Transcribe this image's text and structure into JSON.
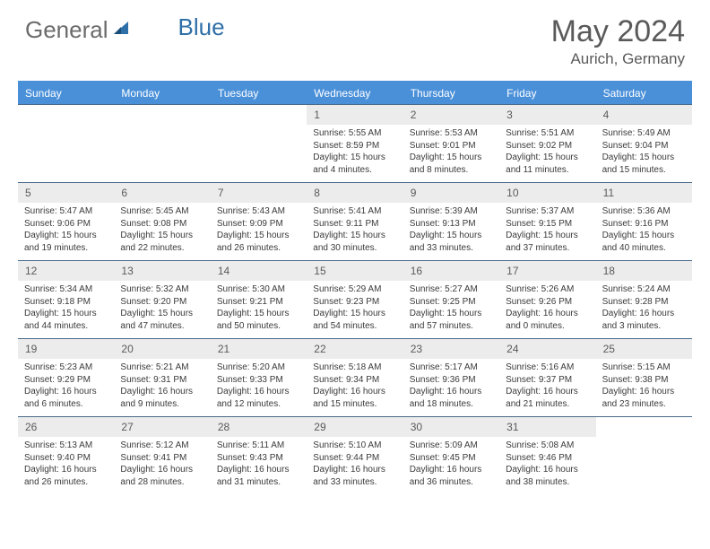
{
  "logo": {
    "part1": "General",
    "part2": "Blue"
  },
  "title": "May 2024",
  "location": "Aurich, Germany",
  "colors": {
    "header_bg": "#4a90d9",
    "header_text": "#ffffff",
    "daynum_bg": "#ececec",
    "border": "#4a6a8a",
    "text": "#3a3a3a",
    "logo_gray": "#6b6b6b",
    "logo_blue": "#2f6fa8"
  },
  "day_names": [
    "Sunday",
    "Monday",
    "Tuesday",
    "Wednesday",
    "Thursday",
    "Friday",
    "Saturday"
  ],
  "weeks": [
    [
      {
        "empty": true
      },
      {
        "empty": true
      },
      {
        "empty": true
      },
      {
        "day": "1",
        "sunrise": "Sunrise: 5:55 AM",
        "sunset": "Sunset: 8:59 PM",
        "daylight": "Daylight: 15 hours and 4 minutes."
      },
      {
        "day": "2",
        "sunrise": "Sunrise: 5:53 AM",
        "sunset": "Sunset: 9:01 PM",
        "daylight": "Daylight: 15 hours and 8 minutes."
      },
      {
        "day": "3",
        "sunrise": "Sunrise: 5:51 AM",
        "sunset": "Sunset: 9:02 PM",
        "daylight": "Daylight: 15 hours and 11 minutes."
      },
      {
        "day": "4",
        "sunrise": "Sunrise: 5:49 AM",
        "sunset": "Sunset: 9:04 PM",
        "daylight": "Daylight: 15 hours and 15 minutes."
      }
    ],
    [
      {
        "day": "5",
        "sunrise": "Sunrise: 5:47 AM",
        "sunset": "Sunset: 9:06 PM",
        "daylight": "Daylight: 15 hours and 19 minutes."
      },
      {
        "day": "6",
        "sunrise": "Sunrise: 5:45 AM",
        "sunset": "Sunset: 9:08 PM",
        "daylight": "Daylight: 15 hours and 22 minutes."
      },
      {
        "day": "7",
        "sunrise": "Sunrise: 5:43 AM",
        "sunset": "Sunset: 9:09 PM",
        "daylight": "Daylight: 15 hours and 26 minutes."
      },
      {
        "day": "8",
        "sunrise": "Sunrise: 5:41 AM",
        "sunset": "Sunset: 9:11 PM",
        "daylight": "Daylight: 15 hours and 30 minutes."
      },
      {
        "day": "9",
        "sunrise": "Sunrise: 5:39 AM",
        "sunset": "Sunset: 9:13 PM",
        "daylight": "Daylight: 15 hours and 33 minutes."
      },
      {
        "day": "10",
        "sunrise": "Sunrise: 5:37 AM",
        "sunset": "Sunset: 9:15 PM",
        "daylight": "Daylight: 15 hours and 37 minutes."
      },
      {
        "day": "11",
        "sunrise": "Sunrise: 5:36 AM",
        "sunset": "Sunset: 9:16 PM",
        "daylight": "Daylight: 15 hours and 40 minutes."
      }
    ],
    [
      {
        "day": "12",
        "sunrise": "Sunrise: 5:34 AM",
        "sunset": "Sunset: 9:18 PM",
        "daylight": "Daylight: 15 hours and 44 minutes."
      },
      {
        "day": "13",
        "sunrise": "Sunrise: 5:32 AM",
        "sunset": "Sunset: 9:20 PM",
        "daylight": "Daylight: 15 hours and 47 minutes."
      },
      {
        "day": "14",
        "sunrise": "Sunrise: 5:30 AM",
        "sunset": "Sunset: 9:21 PM",
        "daylight": "Daylight: 15 hours and 50 minutes."
      },
      {
        "day": "15",
        "sunrise": "Sunrise: 5:29 AM",
        "sunset": "Sunset: 9:23 PM",
        "daylight": "Daylight: 15 hours and 54 minutes."
      },
      {
        "day": "16",
        "sunrise": "Sunrise: 5:27 AM",
        "sunset": "Sunset: 9:25 PM",
        "daylight": "Daylight: 15 hours and 57 minutes."
      },
      {
        "day": "17",
        "sunrise": "Sunrise: 5:26 AM",
        "sunset": "Sunset: 9:26 PM",
        "daylight": "Daylight: 16 hours and 0 minutes."
      },
      {
        "day": "18",
        "sunrise": "Sunrise: 5:24 AM",
        "sunset": "Sunset: 9:28 PM",
        "daylight": "Daylight: 16 hours and 3 minutes."
      }
    ],
    [
      {
        "day": "19",
        "sunrise": "Sunrise: 5:23 AM",
        "sunset": "Sunset: 9:29 PM",
        "daylight": "Daylight: 16 hours and 6 minutes."
      },
      {
        "day": "20",
        "sunrise": "Sunrise: 5:21 AM",
        "sunset": "Sunset: 9:31 PM",
        "daylight": "Daylight: 16 hours and 9 minutes."
      },
      {
        "day": "21",
        "sunrise": "Sunrise: 5:20 AM",
        "sunset": "Sunset: 9:33 PM",
        "daylight": "Daylight: 16 hours and 12 minutes."
      },
      {
        "day": "22",
        "sunrise": "Sunrise: 5:18 AM",
        "sunset": "Sunset: 9:34 PM",
        "daylight": "Daylight: 16 hours and 15 minutes."
      },
      {
        "day": "23",
        "sunrise": "Sunrise: 5:17 AM",
        "sunset": "Sunset: 9:36 PM",
        "daylight": "Daylight: 16 hours and 18 minutes."
      },
      {
        "day": "24",
        "sunrise": "Sunrise: 5:16 AM",
        "sunset": "Sunset: 9:37 PM",
        "daylight": "Daylight: 16 hours and 21 minutes."
      },
      {
        "day": "25",
        "sunrise": "Sunrise: 5:15 AM",
        "sunset": "Sunset: 9:38 PM",
        "daylight": "Daylight: 16 hours and 23 minutes."
      }
    ],
    [
      {
        "day": "26",
        "sunrise": "Sunrise: 5:13 AM",
        "sunset": "Sunset: 9:40 PM",
        "daylight": "Daylight: 16 hours and 26 minutes."
      },
      {
        "day": "27",
        "sunrise": "Sunrise: 5:12 AM",
        "sunset": "Sunset: 9:41 PM",
        "daylight": "Daylight: 16 hours and 28 minutes."
      },
      {
        "day": "28",
        "sunrise": "Sunrise: 5:11 AM",
        "sunset": "Sunset: 9:43 PM",
        "daylight": "Daylight: 16 hours and 31 minutes."
      },
      {
        "day": "29",
        "sunrise": "Sunrise: 5:10 AM",
        "sunset": "Sunset: 9:44 PM",
        "daylight": "Daylight: 16 hours and 33 minutes."
      },
      {
        "day": "30",
        "sunrise": "Sunrise: 5:09 AM",
        "sunset": "Sunset: 9:45 PM",
        "daylight": "Daylight: 16 hours and 36 minutes."
      },
      {
        "day": "31",
        "sunrise": "Sunrise: 5:08 AM",
        "sunset": "Sunset: 9:46 PM",
        "daylight": "Daylight: 16 hours and 38 minutes."
      },
      {
        "empty": true
      }
    ]
  ]
}
